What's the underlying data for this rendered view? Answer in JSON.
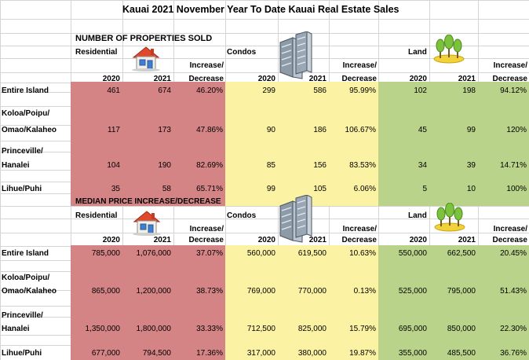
{
  "title": "Kauai 2021 November Year To Date Kauai Real Estate Sales",
  "colors": {
    "residential": "#d58485",
    "condos": "#fbf2a4",
    "land": "#b9d48a"
  },
  "sold": {
    "heading": "NUMBER OF PROPERTIES SOLD",
    "categories": {
      "residential": "Residential",
      "condos": "Condos",
      "land": "Land"
    },
    "col_labels": {
      "y2020": "2020",
      "y2021": "2021",
      "inc_top": "Increase/",
      "inc_bottom": "Decrease"
    },
    "rows": [
      {
        "area1": "Entire Island",
        "area2": "",
        "res": [
          "461",
          "674",
          "46.20%"
        ],
        "con": [
          "299",
          "586",
          "95.99%"
        ],
        "land": [
          "102",
          "198",
          "94.12%"
        ]
      },
      {
        "area1": "Koloa/Poipu/",
        "area2": "Omao/Kalaheo",
        "res": [
          "117",
          "173",
          "47.86%"
        ],
        "con": [
          "90",
          "186",
          "106.67%"
        ],
        "land": [
          "45",
          "99",
          "120%"
        ]
      },
      {
        "area1": "Princeville/",
        "area2": "Hanalei",
        "res": [
          "104",
          "190",
          "82.69%"
        ],
        "con": [
          "85",
          "156",
          "83.53%"
        ],
        "land": [
          "34",
          "39",
          "14.71%"
        ]
      },
      {
        "area1": "Lihue/Puhi",
        "area2": "",
        "res": [
          "35",
          "58",
          "65.71%"
        ],
        "con": [
          "99",
          "105",
          "6.06%"
        ],
        "land": [
          "5",
          "10",
          "100%"
        ]
      }
    ]
  },
  "median": {
    "heading": "MEDIAN PRICE INCREASE/DECREASE",
    "categories": {
      "residential": "Residential",
      "condos": "Condos",
      "land": "Land"
    },
    "col_labels": {
      "y2020": "2020",
      "y2021": "2021",
      "inc_top": "Increase/",
      "inc_bottom": "Decrease"
    },
    "rows": [
      {
        "area1": "Entire Island",
        "area2": "",
        "res": [
          "785,000",
          "1,076,000",
          "37.07%"
        ],
        "con": [
          "560,000",
          "619,500",
          "10.63%"
        ],
        "land": [
          "550,000",
          "662,500",
          "20.45%"
        ]
      },
      {
        "area1": "Koloa/Poipu/",
        "area2": "Omao/Kalaheo",
        "res": [
          "865,000",
          "1,200,000",
          "38.73%"
        ],
        "con": [
          "769,000",
          "770,000",
          "0.13%"
        ],
        "land": [
          "525,000",
          "795,000",
          "51.43%"
        ]
      },
      {
        "area1": "Princeville/",
        "area2": "Hanalei",
        "res": [
          "1,350,000",
          "1,800,000",
          "33.33%"
        ],
        "con": [
          "712,500",
          "825,000",
          "15.79%"
        ],
        "land": [
          "695,000",
          "850,000",
          "22.30%"
        ]
      },
      {
        "area1": "Lihue/Puhi",
        "area2": "",
        "res": [
          "677,000",
          "794,500",
          "17.36%"
        ],
        "con": [
          "317,000",
          "380,000",
          "19.87%"
        ],
        "land": [
          "355,000",
          "485,500",
          "36.76%"
        ]
      }
    ]
  },
  "icons": {
    "residential": "house-icon",
    "condos": "building-icon",
    "land": "trees-icon"
  }
}
